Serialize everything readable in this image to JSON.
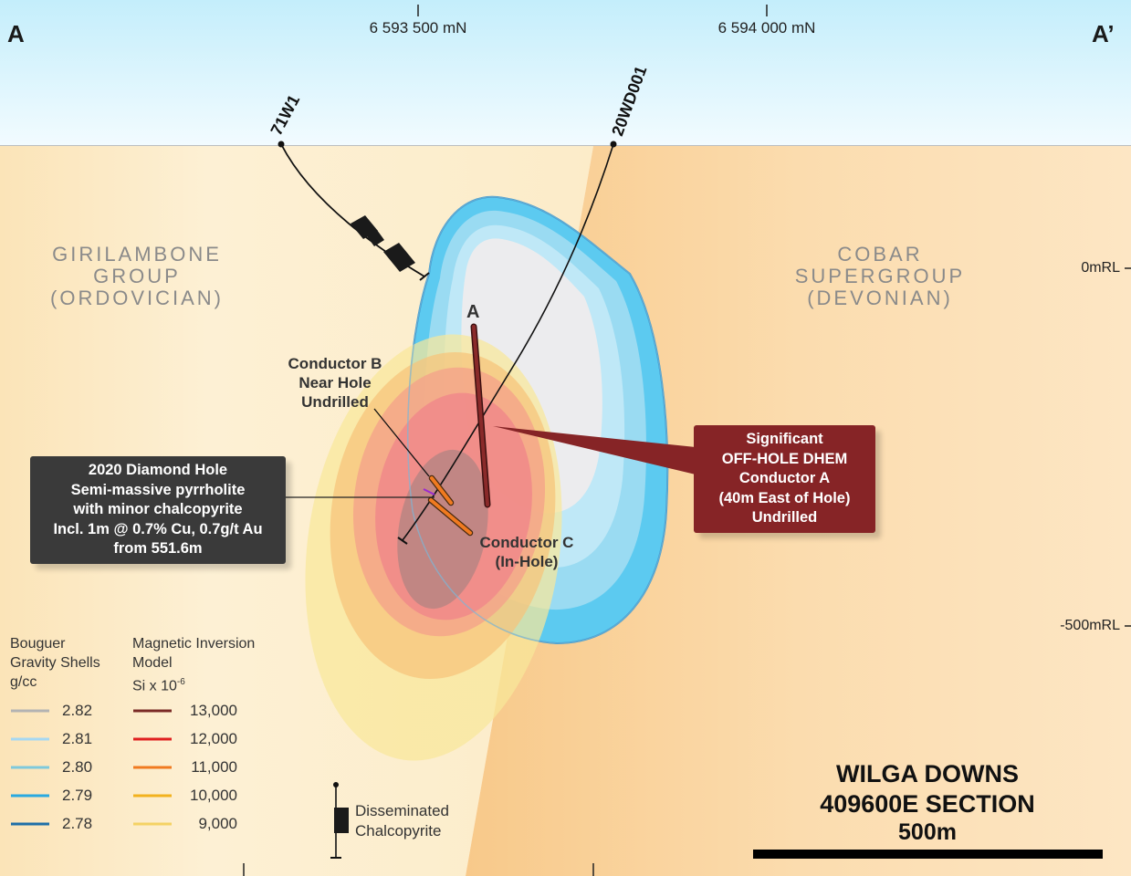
{
  "section": {
    "left_label": "A",
    "right_label": "A’",
    "northings": [
      "6 593 500 mN",
      "6 594 000 mN"
    ],
    "elevations": [
      "0mRL",
      "-500mRL"
    ]
  },
  "units": {
    "left": [
      "GIRILAMBONE",
      "GROUP",
      "(ORDOVICIAN)"
    ],
    "right": [
      "COBAR",
      "SUPERGROUP",
      "(DEVONIAN)"
    ]
  },
  "drill_holes": [
    "71W1",
    "20WD001"
  ],
  "conductors": {
    "a_marker": "A",
    "b": [
      "Conductor B",
      "Near Hole",
      "Undrilled"
    ],
    "c": [
      "Conductor C",
      "(In-Hole)"
    ]
  },
  "callouts": {
    "diamond_hole": [
      "2020 Diamond Hole",
      "Semi-massive pyrrholite",
      "with minor chalcopyrite",
      "Incl. 1m @ 0.7% Cu, 0.7g/t Au",
      "from 551.6m"
    ],
    "dhem": [
      "Significant",
      "OFF-HOLE DHEM",
      "Conductor A",
      "(40m East of Hole)",
      "Undrilled"
    ]
  },
  "legend": {
    "gravity": {
      "title": [
        "Bouguer",
        "Gravity Shells",
        "g/cc"
      ],
      "items": [
        {
          "value": "2.82",
          "color": "#b3b3b3"
        },
        {
          "value": "2.81",
          "color": "#a6d8f2"
        },
        {
          "value": "2.80",
          "color": "#7ec9dc"
        },
        {
          "value": "2.79",
          "color": "#29a9e0"
        },
        {
          "value": "2.78",
          "color": "#1f6fa8"
        }
      ]
    },
    "magnetic": {
      "title": [
        "Magnetic Inversion",
        "Model"
      ],
      "unit_base": "Si x 10",
      "unit_exp": "-6",
      "items": [
        {
          "value": "13,000",
          "color": "#7a2a26"
        },
        {
          "value": "12,000",
          "color": "#e02020"
        },
        {
          "value": "11,000",
          "color": "#f07a20"
        },
        {
          "value": "10,000",
          "color": "#f2b21e"
        },
        {
          "value": "9,000",
          "color": "#f4d264"
        }
      ]
    },
    "chalcopyrite": [
      "Disseminated",
      "Chalcopyrite"
    ]
  },
  "title": {
    "lines": [
      "WILGA DOWNS",
      "409600E SECTION"
    ],
    "scale_label": "500m"
  },
  "colors": {
    "sky_top": "#c4eefb",
    "girilambone": "#fcebc6",
    "cobar": "#fbd6a2",
    "dhem_red": "#862426",
    "callout_dark": "#3a3a3a"
  }
}
